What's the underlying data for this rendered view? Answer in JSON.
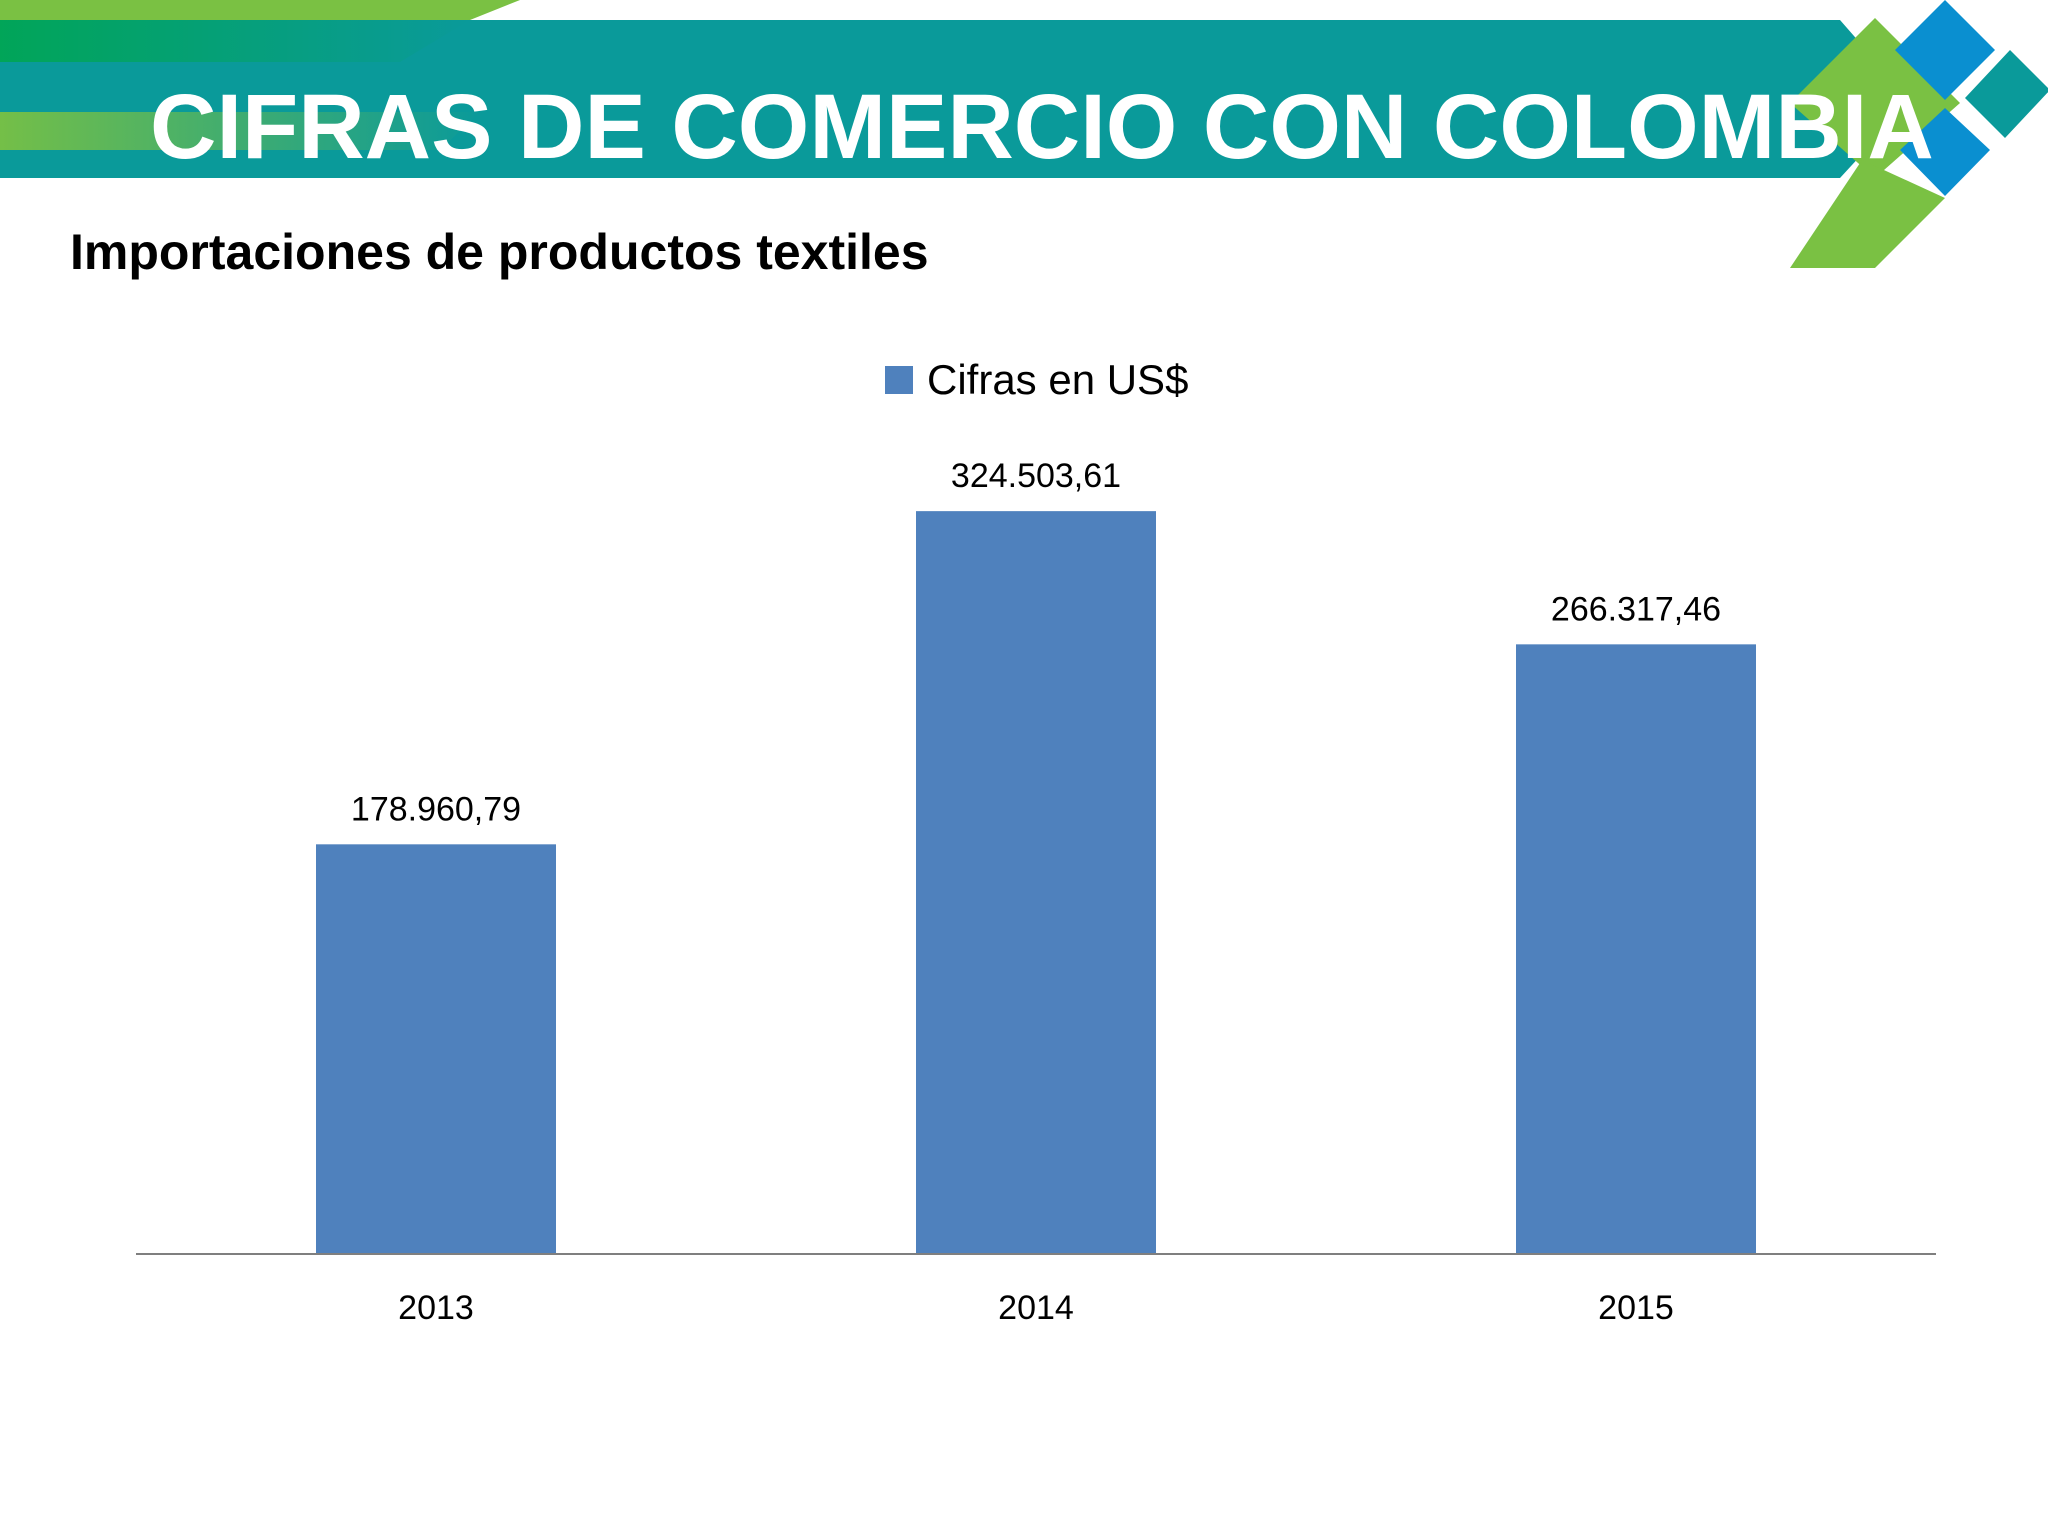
{
  "slide": {
    "title": "CIFRAS DE COMERCIO CON COLOMBIA",
    "subtitle": "Importaciones de productos textiles"
  },
  "theme": {
    "teal": "#0a9a9a",
    "green": "#7ac143",
    "dark_green": "#00a651",
    "blue": "#0a8fd0",
    "bar_color": "#4f81bd",
    "axis_color": "#7f7f7f"
  },
  "chart_data": {
    "type": "bar",
    "categories": [
      "2013",
      "2014",
      "2015"
    ],
    "series": [
      {
        "name": "Cifras en US$",
        "values": [
          178960.79,
          324503.61,
          266317.46
        ],
        "labels": [
          "178.960,79",
          "324.503,61",
          "266.317,46"
        ]
      }
    ],
    "ylim": [
      0,
      325000
    ],
    "grid": false,
    "legend": "top-center",
    "xlabel": "",
    "ylabel": ""
  }
}
